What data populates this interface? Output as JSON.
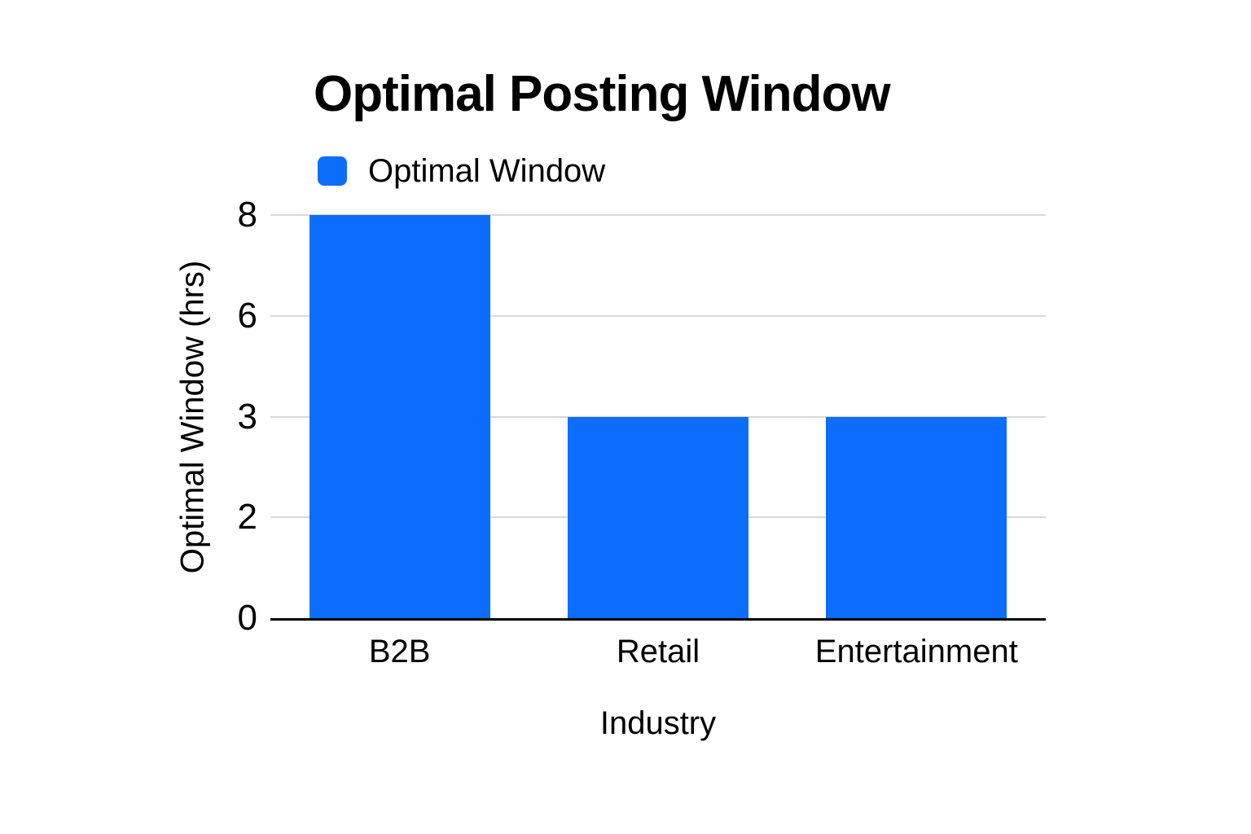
{
  "colors": {
    "bar": "#0d6efd",
    "gridline": "#d9d9d9",
    "axis_line": "#000000",
    "text": "#000000",
    "background": "#ffffff"
  },
  "header": {
    "title": "Optimal Posting Window"
  },
  "legend": {
    "items": [
      {
        "label": "Optimal Window",
        "color": "#0d6efd"
      }
    ]
  },
  "chart_data": {
    "type": "bar",
    "title": "Optimal Posting Window",
    "categories": [
      "B2B",
      "Retail",
      "Entertainment"
    ],
    "series": [
      {
        "name": "Optimal Window",
        "values": [
          8,
          3,
          3
        ]
      }
    ],
    "xlabel": "Industry",
    "ylabel": "Optimal Window (hrs)",
    "y_ticks": [
      0,
      2,
      3,
      6,
      8
    ],
    "ylim": [
      0,
      8
    ],
    "grid": true,
    "legend_position": "top-left",
    "bar_color": "#0d6efd"
  }
}
